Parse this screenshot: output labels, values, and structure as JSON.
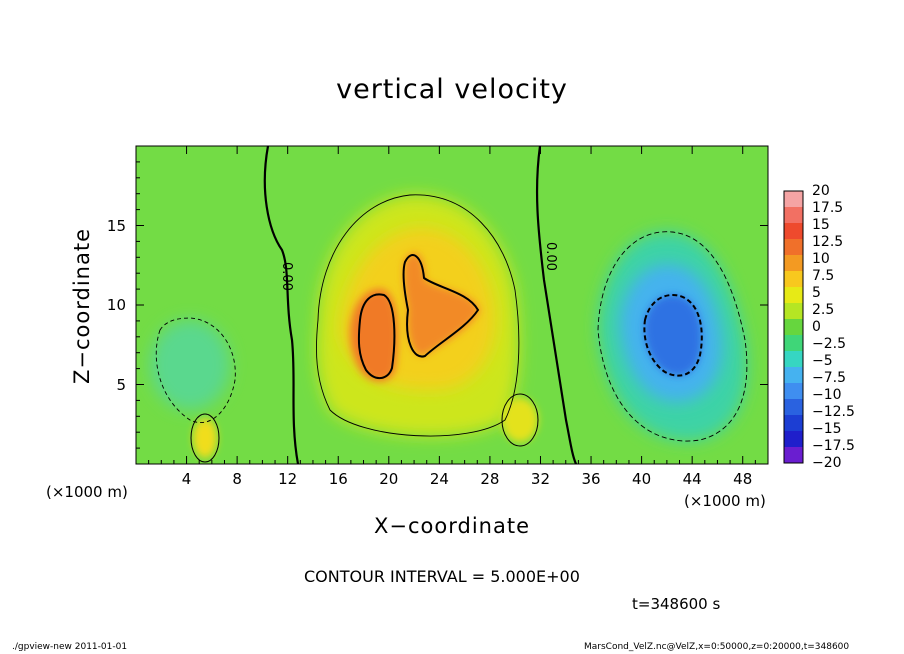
{
  "chart_data": {
    "type": "heatmap",
    "title": "vertical velocity",
    "xlabel": "X−coordinate",
    "ylabel": "Z−coordinate",
    "x_unit_left": "(×1000 m)",
    "x_unit_right": "(×1000 m)",
    "xlim": [
      0,
      50
    ],
    "ylim": [
      0,
      20
    ],
    "x_ticks": [
      4,
      8,
      12,
      16,
      20,
      24,
      28,
      32,
      36,
      40,
      44,
      48
    ],
    "x_tick_labels": [
      "4",
      "8",
      "12",
      "16",
      "20",
      "24",
      "28",
      "32",
      "36",
      "40",
      "44",
      "48"
    ],
    "y_ticks": [
      5,
      10,
      15
    ],
    "y_tick_labels": [
      "5",
      "10",
      "15"
    ],
    "colorbar": {
      "levels": [
        20,
        17.5,
        15,
        12.5,
        10,
        7.5,
        5,
        2.5,
        0,
        -2.5,
        -5,
        -7.5,
        -10,
        -12.5,
        -15,
        -17.5,
        -20
      ],
      "labels": [
        "20",
        "17.5",
        "15",
        "12.5",
        "10",
        "7.5",
        "5",
        "2.5",
        "0",
        "−2.5",
        "−5",
        "−7.5",
        "−10",
        "−12.5",
        "−15",
        "−17.5",
        "−20"
      ],
      "colors": [
        "#f5a4a4",
        "#f27063",
        "#ee4a2d",
        "#f0702a",
        "#f39a22",
        "#f8c81e",
        "#e7ea16",
        "#b5e623",
        "#66d63e",
        "#3fd678",
        "#36d6c2",
        "#45b2f0",
        "#3f8ef0",
        "#2a62e0",
        "#1c3ed3",
        "#1f1fcb",
        "#6a1ed0"
      ]
    },
    "contour_interval": 5.0,
    "contour_labels": [
      "0.00",
      "0.00"
    ],
    "background_value": 0,
    "features": [
      {
        "name": "updraft core left",
        "x": 18.5,
        "z": 8.5,
        "value": 12
      },
      {
        "name": "updraft core right",
        "x": 22.5,
        "z": 9.5,
        "value": 11
      },
      {
        "name": "updraft shallow",
        "x": 5.5,
        "z": 1.5,
        "value": 7
      },
      {
        "name": "updraft shallow right",
        "x": 29.5,
        "z": 2.5,
        "value": 5
      },
      {
        "name": "downdraft core",
        "x": 43.0,
        "z": 8.0,
        "value": -10
      },
      {
        "name": "weak downdraft",
        "x": 3.0,
        "z": 6.0,
        "value": -3
      }
    ]
  },
  "annotations": {
    "contour_interval_text": "CONTOUR INTERVAL = 5.000E+00",
    "time_text": "t=348600 s",
    "footer_left": "./gpview-new  2011-01-01",
    "footer_right": "MarsCond_VelZ.nc@VelZ,x=0:50000,z=0:20000,t=348600"
  }
}
